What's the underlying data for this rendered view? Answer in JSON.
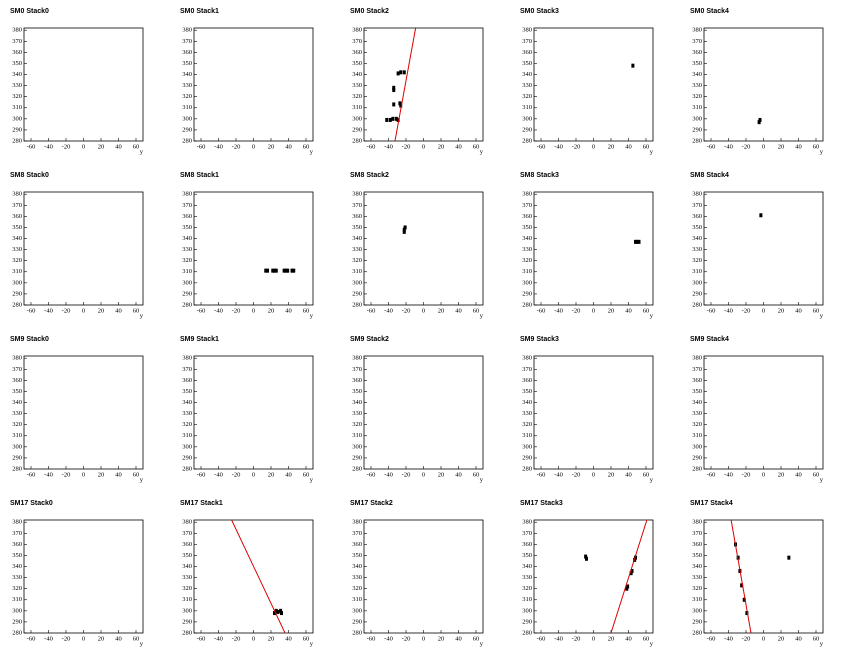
{
  "chart_data": [
    {
      "type": "scatter",
      "title": "SM0 Stack0",
      "xlabel": "y",
      "xlim": [
        -68,
        68
      ],
      "ylim": [
        280,
        382
      ],
      "xticks": [
        -60,
        -40,
        -20,
        0,
        20,
        40,
        60
      ],
      "yticks": [
        280,
        290,
        300,
        310,
        320,
        330,
        340,
        350,
        360,
        370,
        380
      ],
      "series": []
    },
    {
      "type": "scatter",
      "title": "SM0 Stack1",
      "xlabel": "y",
      "xlim": [
        -68,
        68
      ],
      "ylim": [
        280,
        382
      ],
      "xticks": [
        -60,
        -40,
        -20,
        0,
        20,
        40,
        60
      ],
      "yticks": [
        280,
        290,
        300,
        310,
        320,
        330,
        340,
        350,
        360,
        370,
        380
      ],
      "series": []
    },
    {
      "type": "scatter",
      "title": "SM0 Stack2",
      "xlabel": "y",
      "xlim": [
        -68,
        68
      ],
      "ylim": [
        280,
        382
      ],
      "xticks": [
        -60,
        -40,
        -20,
        0,
        20,
        40,
        60
      ],
      "yticks": [
        280,
        290,
        300,
        310,
        320,
        330,
        340,
        350,
        360,
        370,
        380
      ],
      "series": [
        {
          "style": "points",
          "color": "#000000",
          "x": [
            -42,
            -38,
            -35,
            -31,
            -29,
            -34,
            -34,
            -34,
            -27,
            -26,
            -29,
            -26,
            -22
          ],
          "values": [
            299,
            299,
            300,
            300,
            299,
            328,
            326,
            313,
            314,
            312,
            341,
            342,
            342
          ]
        },
        {
          "style": "line",
          "color": "#dd0000",
          "x": [
            -32.6,
            -9
          ],
          "values": [
            280,
            382
          ]
        }
      ]
    },
    {
      "type": "scatter",
      "title": "SM0 Stack3",
      "xlabel": "y",
      "xlim": [
        -68,
        68
      ],
      "ylim": [
        280,
        382
      ],
      "xticks": [
        -60,
        -40,
        -20,
        0,
        20,
        40,
        60
      ],
      "yticks": [
        280,
        290,
        300,
        310,
        320,
        330,
        340,
        350,
        360,
        370,
        380
      ],
      "series": [
        {
          "style": "points",
          "color": "#000000",
          "x": [
            45
          ],
          "values": [
            348
          ]
        }
      ]
    },
    {
      "type": "scatter",
      "title": "SM0 Stack4",
      "xlabel": "y",
      "xlim": [
        -68,
        68
      ],
      "ylim": [
        280,
        382
      ],
      "xticks": [
        -60,
        -40,
        -20,
        0,
        20,
        40,
        60
      ],
      "yticks": [
        280,
        290,
        300,
        310,
        320,
        330,
        340,
        350,
        360,
        370,
        380
      ],
      "series": [
        {
          "style": "points",
          "color": "#000000",
          "x": [
            -5,
            -4
          ],
          "values": [
            297,
            299
          ]
        }
      ]
    },
    {
      "type": "scatter",
      "title": "SM8 Stack0",
      "xlabel": "y",
      "xlim": [
        -68,
        68
      ],
      "ylim": [
        280,
        382
      ],
      "xticks": [
        -60,
        -40,
        -20,
        0,
        20,
        40,
        60
      ],
      "yticks": [
        280,
        290,
        300,
        310,
        320,
        330,
        340,
        350,
        360,
        370,
        380
      ],
      "series": []
    },
    {
      "type": "scatter",
      "title": "SM8 Stack1",
      "xlabel": "y",
      "xlim": [
        -68,
        68
      ],
      "ylim": [
        280,
        382
      ],
      "xticks": [
        -60,
        -40,
        -20,
        0,
        20,
        40,
        60
      ],
      "yticks": [
        280,
        290,
        300,
        310,
        320,
        330,
        340,
        350,
        360,
        370,
        380
      ],
      "series": [
        {
          "style": "points",
          "color": "#000000",
          "x": [
            14,
            16,
            22,
            24,
            26,
            35,
            37,
            39,
            44,
            46
          ],
          "values": [
            311,
            311,
            311,
            311,
            311,
            311,
            311,
            311,
            311,
            311
          ]
        }
      ]
    },
    {
      "type": "scatter",
      "title": "SM8 Stack2",
      "xlabel": "y",
      "xlim": [
        -68,
        68
      ],
      "ylim": [
        280,
        382
      ],
      "xticks": [
        -60,
        -40,
        -20,
        0,
        20,
        40,
        60
      ],
      "yticks": [
        280,
        290,
        300,
        310,
        320,
        330,
        340,
        350,
        360,
        370,
        380
      ],
      "series": [
        {
          "style": "points",
          "color": "#000000",
          "x": [
            -22,
            -22,
            -21
          ],
          "values": [
            346,
            348,
            350
          ]
        }
      ]
    },
    {
      "type": "scatter",
      "title": "SM8 Stack3",
      "xlabel": "y",
      "xlim": [
        -68,
        68
      ],
      "ylim": [
        280,
        382
      ],
      "xticks": [
        -60,
        -40,
        -20,
        0,
        20,
        40,
        60
      ],
      "yticks": [
        280,
        290,
        300,
        310,
        320,
        330,
        340,
        350,
        360,
        370,
        380
      ],
      "series": [
        {
          "style": "points",
          "color": "#000000",
          "x": [
            48,
            50,
            52
          ],
          "values": [
            337,
            337,
            337
          ]
        }
      ]
    },
    {
      "type": "scatter",
      "title": "SM8 Stack4",
      "xlabel": "y",
      "xlim": [
        -68,
        68
      ],
      "ylim": [
        280,
        382
      ],
      "xticks": [
        -60,
        -40,
        -20,
        0,
        20,
        40,
        60
      ],
      "yticks": [
        280,
        290,
        300,
        310,
        320,
        330,
        340,
        350,
        360,
        370,
        380
      ],
      "series": [
        {
          "style": "points",
          "color": "#000000",
          "x": [
            -3
          ],
          "values": [
            361
          ]
        }
      ]
    },
    {
      "type": "scatter",
      "title": "SM9 Stack0",
      "xlabel": "y",
      "xlim": [
        -68,
        68
      ],
      "ylim": [
        280,
        382
      ],
      "xticks": [
        -60,
        -40,
        -20,
        0,
        20,
        40,
        60
      ],
      "yticks": [
        280,
        290,
        300,
        310,
        320,
        330,
        340,
        350,
        360,
        370,
        380
      ],
      "series": []
    },
    {
      "type": "scatter",
      "title": "SM9 Stack1",
      "xlabel": "y",
      "xlim": [
        -68,
        68
      ],
      "ylim": [
        280,
        382
      ],
      "xticks": [
        -60,
        -40,
        -20,
        0,
        20,
        40,
        60
      ],
      "yticks": [
        280,
        290,
        300,
        310,
        320,
        330,
        340,
        350,
        360,
        370,
        380
      ],
      "series": []
    },
    {
      "type": "scatter",
      "title": "SM9 Stack2",
      "xlabel": "y",
      "xlim": [
        -68,
        68
      ],
      "ylim": [
        280,
        382
      ],
      "xticks": [
        -60,
        -40,
        -20,
        0,
        20,
        40,
        60
      ],
      "yticks": [
        280,
        290,
        300,
        310,
        320,
        330,
        340,
        350,
        360,
        370,
        380
      ],
      "series": []
    },
    {
      "type": "scatter",
      "title": "SM9 Stack3",
      "xlabel": "y",
      "xlim": [
        -68,
        68
      ],
      "ylim": [
        280,
        382
      ],
      "xticks": [
        -60,
        -40,
        -20,
        0,
        20,
        40,
        60
      ],
      "yticks": [
        280,
        290,
        300,
        310,
        320,
        330,
        340,
        350,
        360,
        370,
        380
      ],
      "series": []
    },
    {
      "type": "scatter",
      "title": "SM9 Stack4",
      "xlabel": "y",
      "xlim": [
        -68,
        68
      ],
      "ylim": [
        280,
        382
      ],
      "xticks": [
        -60,
        -40,
        -20,
        0,
        20,
        40,
        60
      ],
      "yticks": [
        280,
        290,
        300,
        310,
        320,
        330,
        340,
        350,
        360,
        370,
        380
      ],
      "series": []
    },
    {
      "type": "scatter",
      "title": "SM17 Stack0",
      "xlabel": "y",
      "xlim": [
        -68,
        68
      ],
      "ylim": [
        280,
        382
      ],
      "xticks": [
        -60,
        -40,
        -20,
        0,
        20,
        40,
        60
      ],
      "yticks": [
        280,
        290,
        300,
        310,
        320,
        330,
        340,
        350,
        360,
        370,
        380
      ],
      "series": []
    },
    {
      "type": "scatter",
      "title": "SM17 Stack1",
      "xlabel": "y",
      "xlim": [
        -68,
        68
      ],
      "ylim": [
        280,
        382
      ],
      "xticks": [
        -60,
        -40,
        -20,
        0,
        20,
        40,
        60
      ],
      "yticks": [
        280,
        290,
        300,
        310,
        320,
        330,
        340,
        350,
        360,
        370,
        380
      ],
      "series": [
        {
          "style": "points",
          "color": "#000000",
          "x": [
            24,
            26,
            28,
            31,
            32
          ],
          "values": [
            298,
            300,
            299,
            300,
            298
          ]
        },
        {
          "style": "line",
          "color": "#dd0000",
          "x": [
            36,
            -25
          ],
          "values": [
            280,
            382
          ]
        }
      ]
    },
    {
      "type": "scatter",
      "title": "SM17 Stack2",
      "xlabel": "y",
      "xlim": [
        -68,
        68
      ],
      "ylim": [
        280,
        382
      ],
      "xticks": [
        -60,
        -40,
        -20,
        0,
        20,
        40,
        60
      ],
      "yticks": [
        280,
        290,
        300,
        310,
        320,
        330,
        340,
        350,
        360,
        370,
        380
      ],
      "series": []
    },
    {
      "type": "scatter",
      "title": "SM17 Stack3",
      "xlabel": "y",
      "xlim": [
        -68,
        68
      ],
      "ylim": [
        280,
        382
      ],
      "xticks": [
        -60,
        -40,
        -20,
        0,
        20,
        40,
        60
      ],
      "yticks": [
        280,
        290,
        300,
        310,
        320,
        330,
        340,
        350,
        360,
        370,
        380
      ],
      "series": [
        {
          "style": "points",
          "color": "#000000",
          "x": [
            -9,
            -8,
            38,
            39,
            43,
            44,
            47,
            48
          ],
          "values": [
            349,
            347,
            320,
            322,
            334,
            336,
            346,
            348
          ]
        },
        {
          "style": "line",
          "color": "#dd0000",
          "x": [
            20,
            61
          ],
          "values": [
            280,
            382
          ]
        }
      ]
    },
    {
      "type": "scatter",
      "title": "SM17 Stack4",
      "xlabel": "y",
      "xlim": [
        -68,
        68
      ],
      "ylim": [
        280,
        382
      ],
      "xticks": [
        -60,
        -40,
        -20,
        0,
        20,
        40,
        60
      ],
      "yticks": [
        280,
        290,
        300,
        310,
        320,
        330,
        340,
        350,
        360,
        370,
        380
      ],
      "series": [
        {
          "style": "points",
          "color": "#000000",
          "x": [
            -32,
            -29,
            -27,
            -25,
            -22,
            -19,
            29
          ],
          "values": [
            360,
            348,
            336,
            323,
            310,
            298,
            348
          ]
        },
        {
          "style": "line",
          "color": "#dd0000",
          "x": [
            -14.3,
            -37
          ],
          "values": [
            280,
            382
          ]
        }
      ]
    }
  ]
}
